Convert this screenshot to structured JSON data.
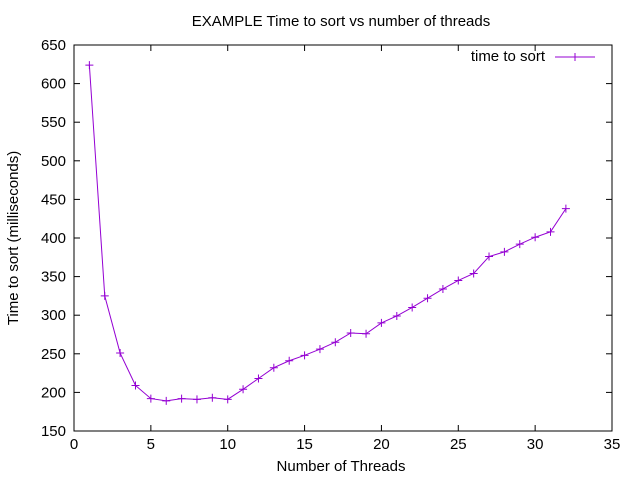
{
  "chart_data": {
    "type": "line",
    "title": "EXAMPLE Time to sort vs number of threads",
    "xlabel": "Number of Threads",
    "ylabel": "Time to sort (milliseconds)",
    "xlim": [
      0,
      35
    ],
    "ylim": [
      150,
      650
    ],
    "xticks": [
      0,
      5,
      10,
      15,
      20,
      25,
      30,
      35
    ],
    "yticks": [
      150,
      200,
      250,
      300,
      350,
      400,
      450,
      500,
      550,
      600,
      650
    ],
    "grid": false,
    "legend_position": "top-right",
    "series": [
      {
        "name": "time to sort",
        "color": "#9400d3",
        "marker": "plus",
        "x": [
          1,
          2,
          3,
          4,
          5,
          6,
          7,
          8,
          9,
          10,
          11,
          12,
          13,
          14,
          15,
          16,
          17,
          18,
          19,
          20,
          21,
          22,
          23,
          24,
          25,
          26,
          27,
          28,
          29,
          30,
          31,
          32
        ],
        "y": [
          624,
          325,
          251,
          209,
          192,
          189,
          192,
          191,
          193,
          191,
          204,
          218,
          232,
          241,
          248,
          256,
          265,
          277,
          276,
          290,
          299,
          310,
          322,
          334,
          345,
          354,
          376,
          382,
          392,
          401,
          408,
          438
        ]
      }
    ]
  }
}
